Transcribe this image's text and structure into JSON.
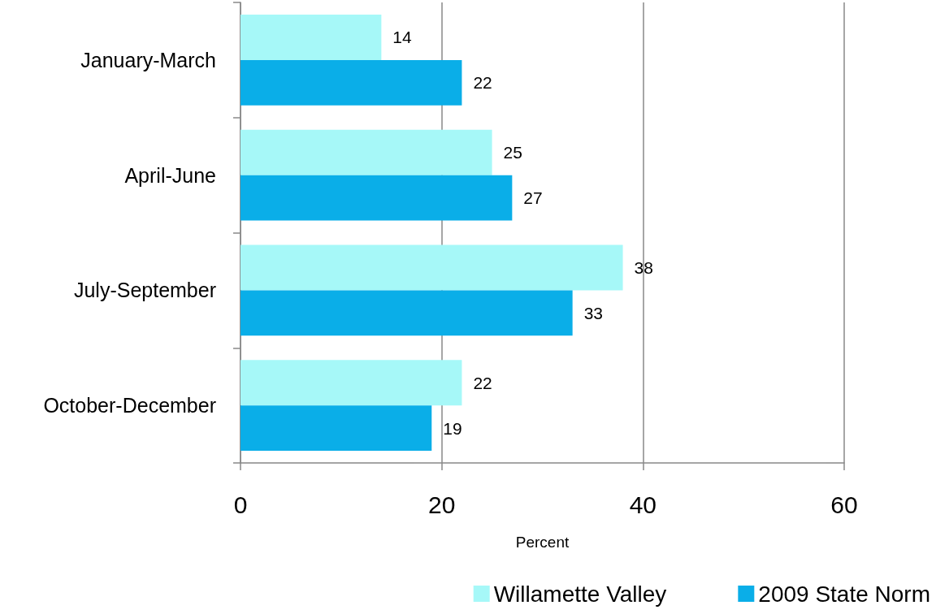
{
  "chart_data": {
    "type": "bar",
    "orientation": "horizontal",
    "categories": [
      "January-March",
      "April-June",
      "July-September",
      "October-December"
    ],
    "series": [
      {
        "name": "Willamette Valley",
        "color": "#a6f8f8",
        "values": [
          14,
          25,
          38,
          22
        ]
      },
      {
        "name": "2009 State Norm",
        "color": "#0aaee8",
        "values": [
          22,
          27,
          33,
          19
        ]
      }
    ],
    "xlabel": "Percent",
    "xlim": [
      0,
      60
    ],
    "xticks": [
      0,
      20,
      40,
      60
    ],
    "grid": "x",
    "legend": "bottom",
    "data_labels": true
  }
}
